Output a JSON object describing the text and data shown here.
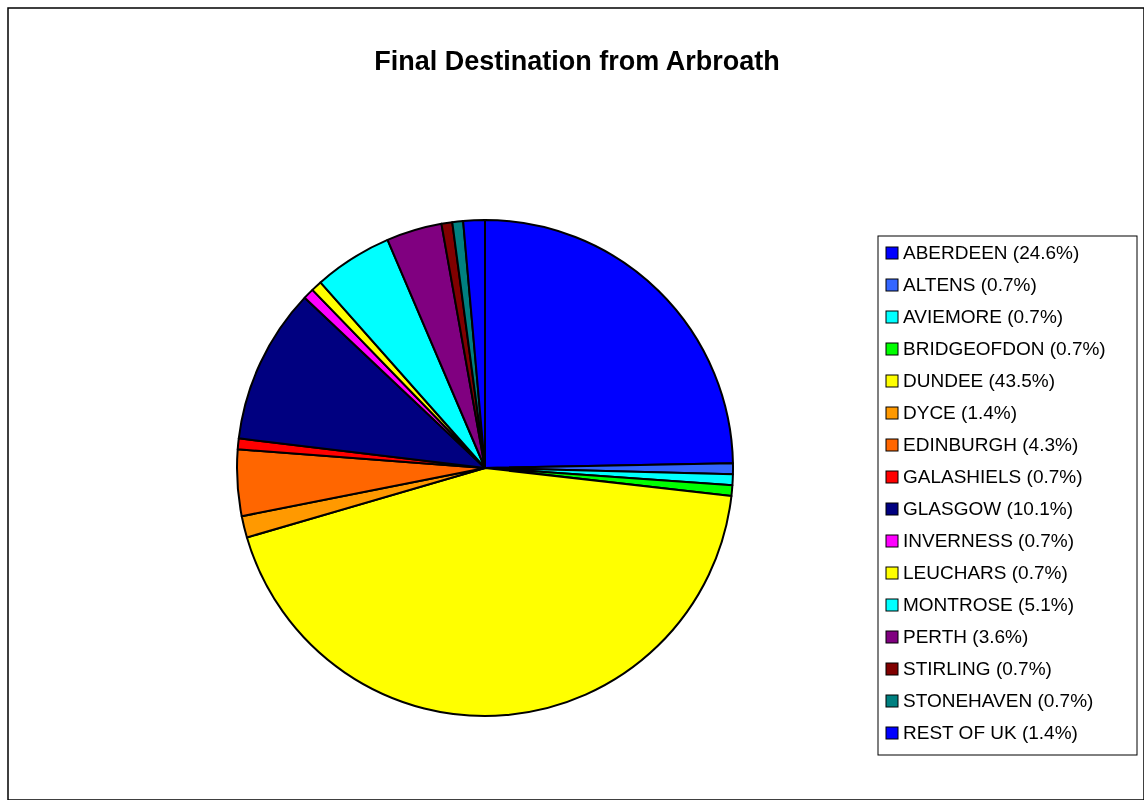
{
  "chart_data": {
    "type": "pie",
    "title": "Final Destination from Arbroath",
    "categories": [
      "ABERDEEN (24.6%)",
      "ALTENS (0.7%)",
      "AVIEMORE (0.7%)",
      "BRIDGEOFDON (0.7%)",
      "DUNDEE (43.5%)",
      "DYCE (1.4%)",
      "EDINBURGH (4.3%)",
      "GALASHIELS (0.7%)",
      "GLASGOW (10.1%)",
      "INVERNESS (0.7%)",
      "LEUCHARS (0.7%)",
      "MONTROSE (5.1%)",
      "PERTH (3.6%)",
      "STIRLING (0.7%)",
      "STONEHAVEN (0.7%)",
      "REST OF UK (1.4%)"
    ],
    "values": [
      24.6,
      0.7,
      0.7,
      0.7,
      43.5,
      1.4,
      4.3,
      0.7,
      10.1,
      0.7,
      0.7,
      5.1,
      3.6,
      0.7,
      0.7,
      1.4
    ],
    "colors": [
      "#0000ff",
      "#3366ff",
      "#00ffff",
      "#00ff00",
      "#ffff00",
      "#ff9900",
      "#ff6600",
      "#ff0000",
      "#000080",
      "#ff00ff",
      "#ffff00",
      "#00ffff",
      "#800080",
      "#800000",
      "#008080",
      "#0000ff"
    ],
    "legend": "right"
  }
}
